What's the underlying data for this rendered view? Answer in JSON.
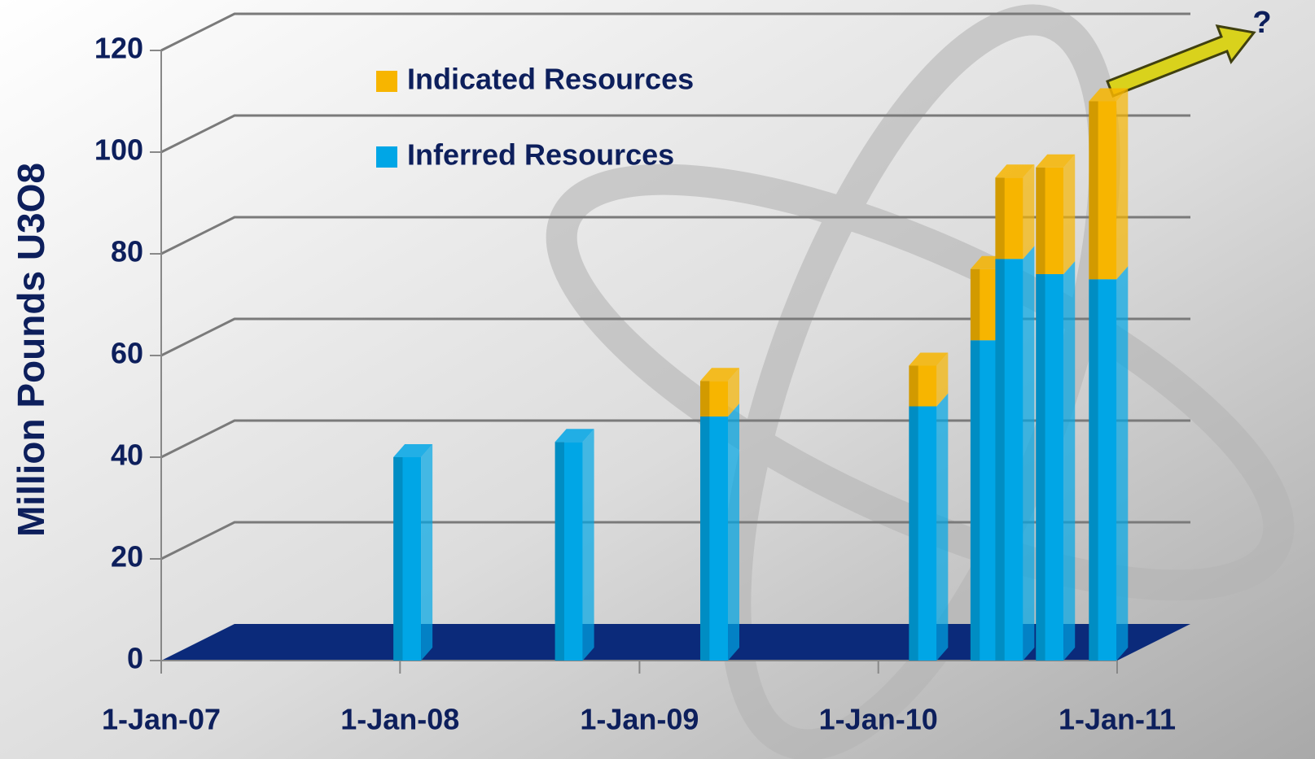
{
  "chart_data": {
    "type": "stacked_bar",
    "y_label": "Million Pounds U3O8",
    "annotation": "?",
    "x": [
      "2008-01-12",
      "2008-09-15",
      "2009-04-25",
      "2010-03-10",
      "2010-06-12",
      "2010-07-20",
      "2010-09-20",
      "2010-12-10"
    ],
    "series": [
      {
        "name": "Inferred Resources",
        "color": "#00a6e6",
        "values": [
          40,
          43,
          48,
          50,
          63,
          79,
          76,
          75
        ]
      },
      {
        "name": "Indicated Resources",
        "color": "#f7b500",
        "values": [
          null,
          null,
          7,
          8,
          14,
          16,
          21,
          35
        ]
      }
    ],
    "xlim": [
      "2007-01-01",
      "2011-01-01"
    ],
    "xticks": [
      {
        "value": "2007-01-01",
        "label": "1-Jan-07"
      },
      {
        "value": "2008-01-01",
        "label": "1-Jan-08"
      },
      {
        "value": "2009-01-01",
        "label": "1-Jan-09"
      },
      {
        "value": "2010-01-01",
        "label": "1-Jan-10"
      },
      {
        "value": "2011-01-01",
        "label": "1-Jan-11"
      }
    ],
    "ylim": [
      0,
      120
    ],
    "yticks": [
      0,
      20,
      40,
      60,
      80,
      100,
      120
    ],
    "grid": true
  }
}
